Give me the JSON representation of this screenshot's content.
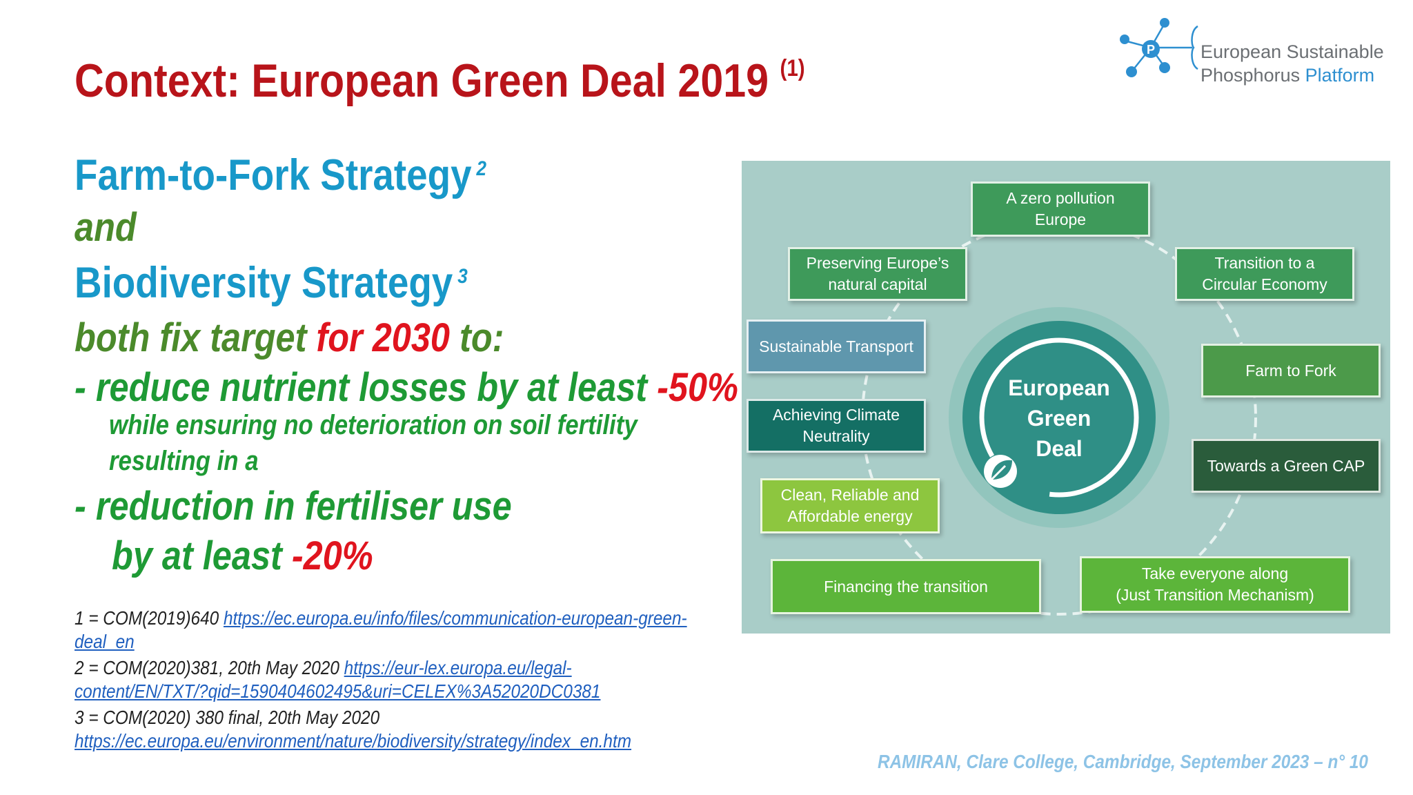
{
  "title": {
    "text": "Context: European Green Deal 2019",
    "ref": "(1)"
  },
  "logo": {
    "line1": "European Sustainable",
    "line2a": "Phosphorus",
    "line2b": "Platform",
    "center_letter": "P"
  },
  "body": {
    "l1": {
      "text": "Farm-to-Fork Strategy",
      "sup": "2"
    },
    "l2": "and",
    "l3": {
      "text": "Biodiversity Strategy",
      "sup": "3"
    },
    "l4": {
      "a": "both fix target",
      "b": "for 2030",
      "c": "to:"
    },
    "l5": {
      "a": "- reduce nutrient losses by at least",
      "b": "-50%"
    },
    "l6": "while ensuring no deterioration on soil fertility",
    "l7": "resulting in a",
    "l8": "- reduction in fertiliser use",
    "l9": {
      "a": "by at least",
      "b": "-20%"
    }
  },
  "refs": {
    "r1_prefix": "1 = COM(2019)640",
    "r1_link_a": "https://ec.europa.eu/info/files/communication-european-green-",
    "r1_link_b": "deal_en",
    "r2_prefix": "2 = COM(2020)381, 20th May 2020",
    "r2_link_a": "https://eur-lex.europa.eu/legal-",
    "r2_link_b": "content/EN/TXT/?qid=1590404602495&uri=CELEX%3A52020DC0381",
    "r3_prefix": "3 = COM(2020) 380 final, 20th May 2020",
    "r3_link": "https://ec.europa.eu/environment/nature/biodiversity/strategy/index_en.htm"
  },
  "footer": "RAMIRAN, Clare College, Cambridge, September 2023 – n° 10",
  "diagram": {
    "center": [
      "European",
      "Green",
      "Deal"
    ],
    "boxes": {
      "zero_pollution": [
        "A zero pollution",
        "Europe"
      ],
      "preserving": [
        "Preserving Europe’s",
        "natural capital"
      ],
      "circular": [
        "Transition to a",
        "Circular Economy"
      ],
      "transport": "Sustainable Transport",
      "farm_to_fork": "Farm to Fork",
      "climate": [
        "Achieving Climate",
        "Neutrality"
      ],
      "green_cap": "Towards a Green CAP",
      "energy": [
        "Clean, Reliable and",
        "Affordable energy"
      ],
      "financing": "Financing the transition",
      "take_everyone": [
        "Take everyone along",
        "(Just Transition Mechanism)"
      ]
    },
    "colors": {
      "background": "#a9cdc8",
      "dark_teal": "#146f64",
      "mid_green": "#3e9a5a",
      "light_green": "#5cb53a",
      "steel_blue": "#5f97ad",
      "dark_green": "#2a5c3b",
      "lime": "#8dc63f"
    }
  }
}
